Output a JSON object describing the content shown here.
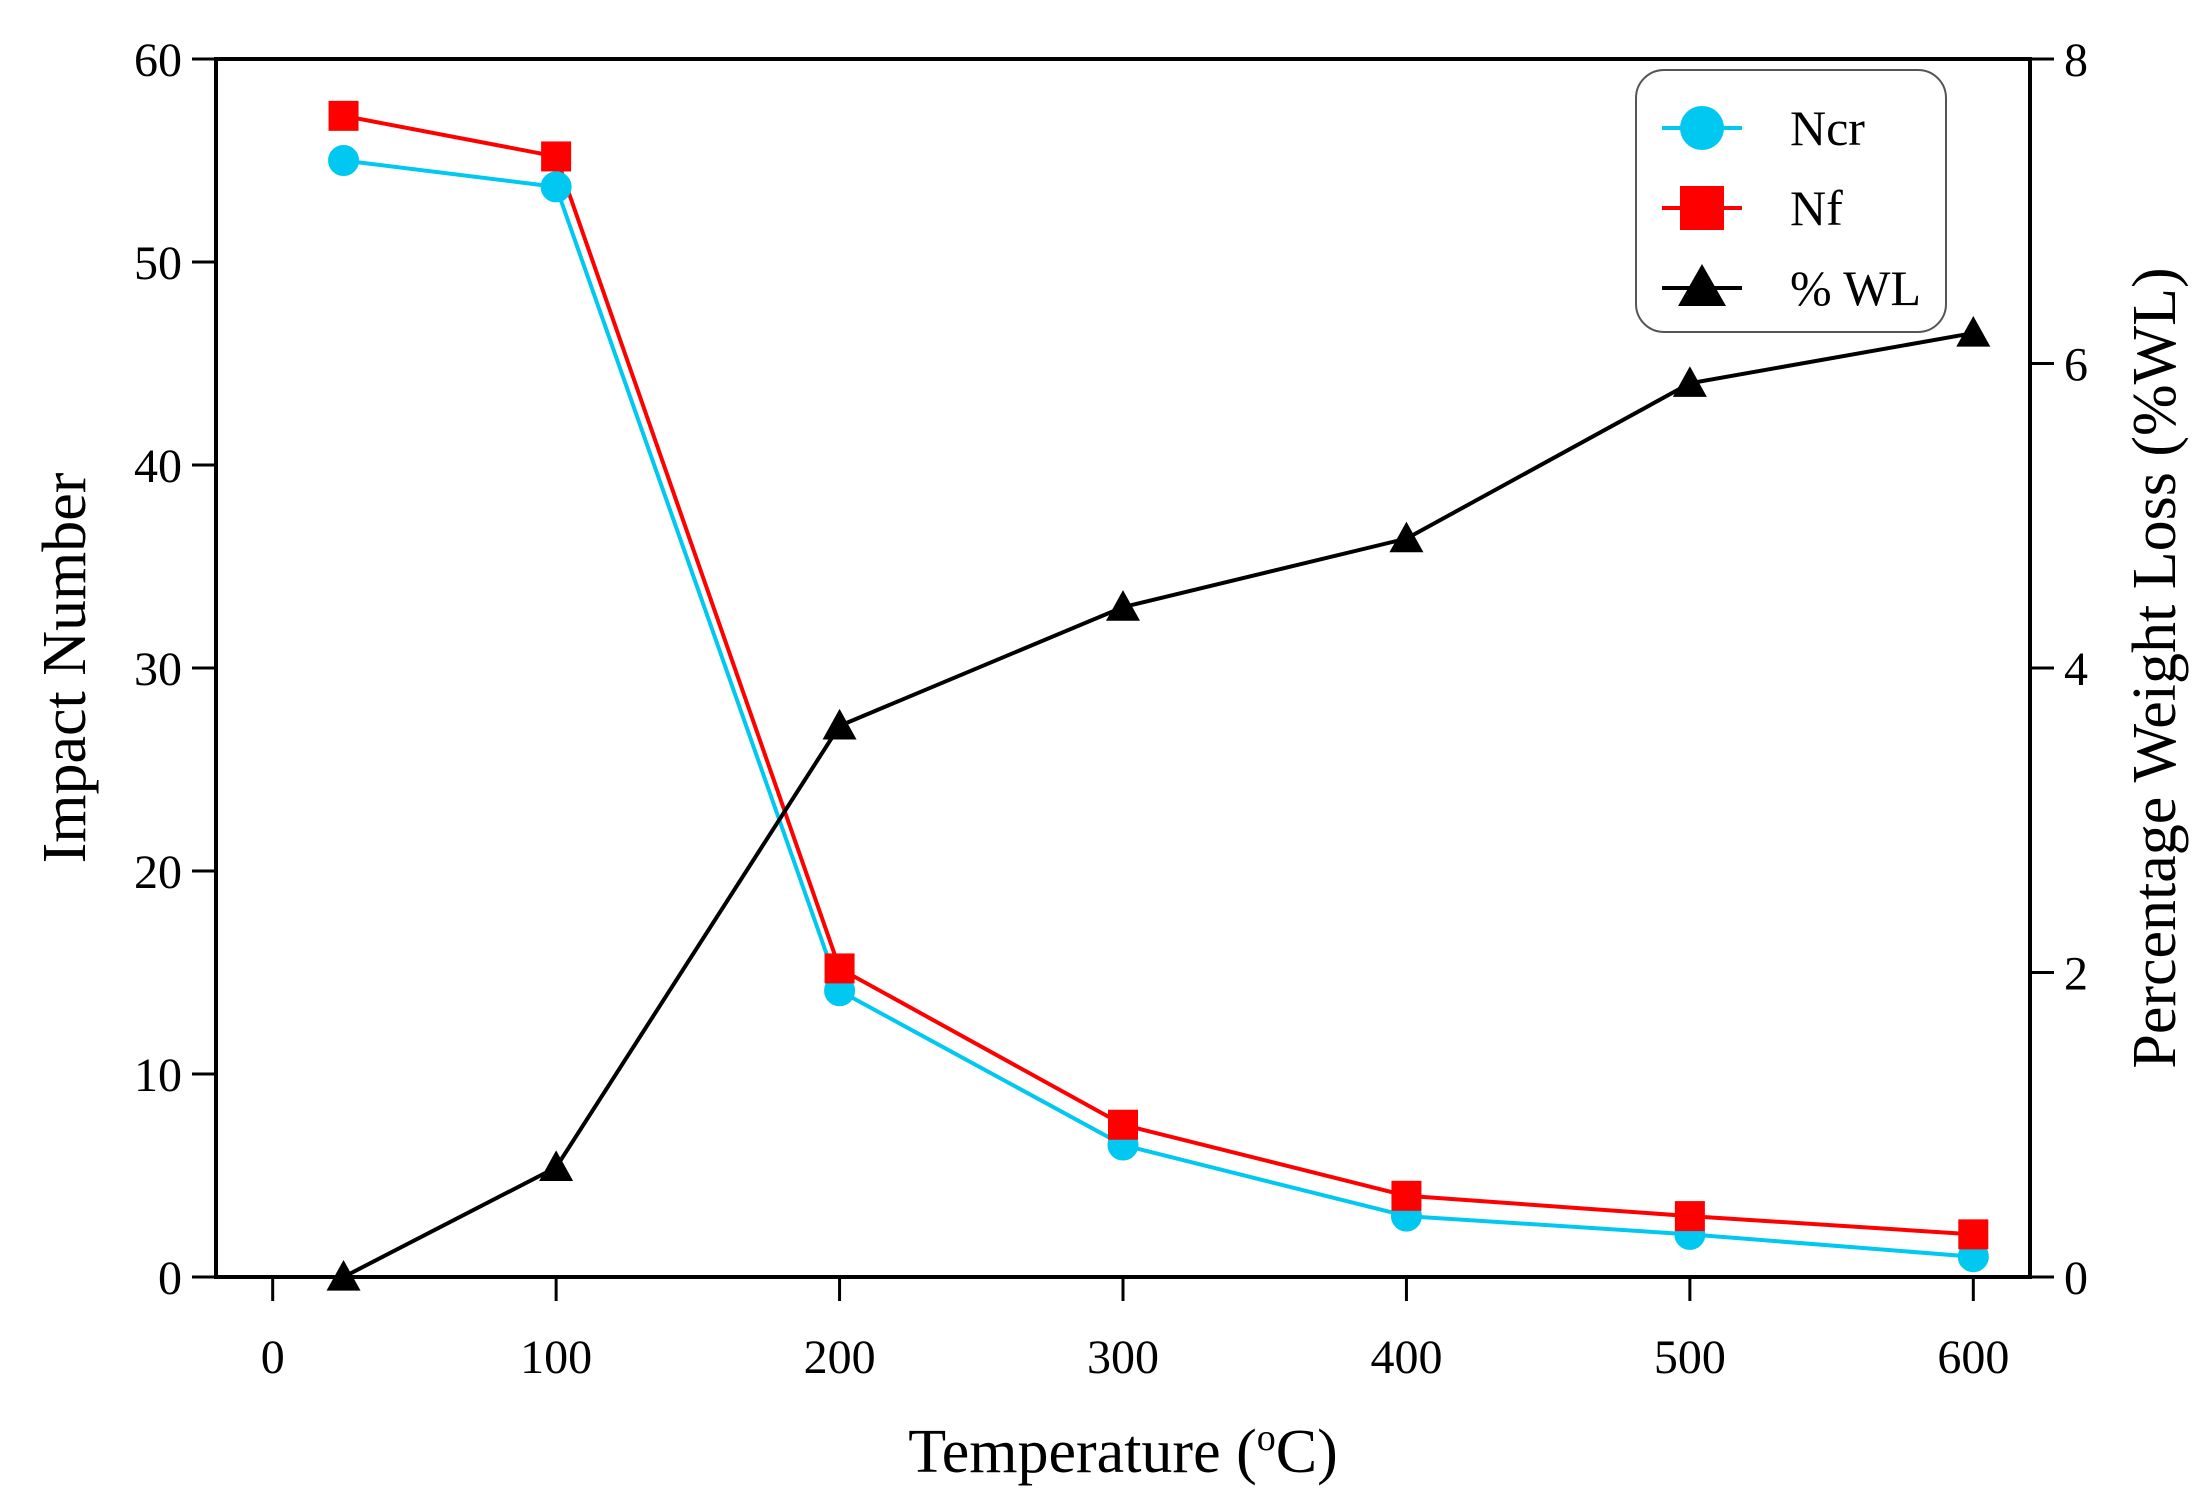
{
  "chart_data": {
    "type": "line",
    "xlabel": "Temperature (",
    "xlabel_sup": "o",
    "xlabel_end": "C)",
    "ylabel_left": "Impact Number",
    "ylabel_right": "Percentage Weight Loss (%WL)",
    "xlim": [
      -20,
      620
    ],
    "ylim_left": [
      0,
      60
    ],
    "ylim_right": [
      0,
      8
    ],
    "x_ticks": [
      0,
      100,
      200,
      300,
      400,
      500,
      600
    ],
    "x_tick_labels": [
      "0",
      "100",
      "200",
      "300",
      "400",
      "500",
      "600"
    ],
    "y_left_ticks": [
      0,
      10,
      20,
      30,
      40,
      50,
      60
    ],
    "y_left_tick_labels": [
      "0",
      "10",
      "20",
      "30",
      "40",
      "50",
      "60"
    ],
    "y_right_ticks": [
      0,
      2,
      4,
      6,
      8
    ],
    "y_right_tick_labels": [
      "0",
      "2",
      "4",
      "6",
      "8"
    ],
    "legend_position": "top-right",
    "series": [
      {
        "name": "Ncr",
        "axis": "left",
        "marker": "circle",
        "color": "#00c8f0",
        "x": [
          25,
          100,
          200,
          300,
          400,
          500,
          600
        ],
        "values": [
          55.0,
          53.7,
          14.1,
          6.5,
          3.0,
          2.1,
          1.0
        ]
      },
      {
        "name": "Nf",
        "axis": "left",
        "marker": "square",
        "color": "#ff0000",
        "x": [
          25,
          100,
          200,
          300,
          400,
          500,
          600
        ],
        "values": [
          57.2,
          55.2,
          15.2,
          7.5,
          4.0,
          3.0,
          2.1
        ]
      },
      {
        "name": "% WL",
        "axis": "right",
        "marker": "triangle",
        "color": "#000000",
        "x": [
          25,
          100,
          200,
          300,
          400,
          500,
          600
        ],
        "values": [
          0.0,
          0.72,
          3.62,
          4.4,
          4.85,
          5.87,
          6.2
        ]
      }
    ]
  }
}
